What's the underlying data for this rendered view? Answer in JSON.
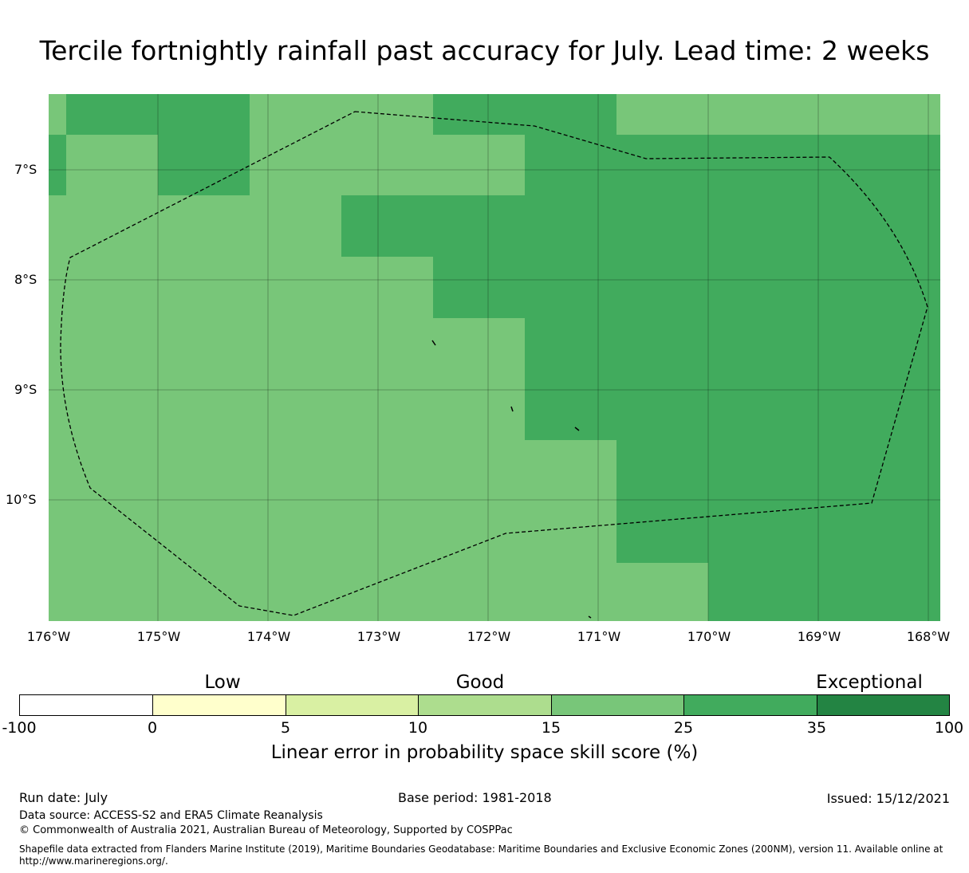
{
  "title": "Tercile fortnightly rainfall past accuracy for July. Lead time: 2 weeks",
  "map": {
    "lat_labels": [
      "7°S",
      "8°S",
      "9°S",
      "10°S"
    ],
    "lon_labels": [
      "176°W",
      "175°W",
      "174°W",
      "173°W",
      "172°W",
      "171°W",
      "170°W",
      "169°W",
      "168°W"
    ],
    "lat_range": [
      -11.2,
      -6.3
    ],
    "lon_range": [
      -176.0,
      -167.9
    ],
    "fill_colors": {
      "15-25": "#78c679",
      "25-35": "#41ab5d"
    }
  },
  "colorbar": {
    "category_words": [
      "Low",
      "Good",
      "Exceptional"
    ],
    "ticks": [
      "-100",
      "0",
      "5",
      "10",
      "15",
      "25",
      "35",
      "100"
    ],
    "colors": [
      "#ffffff",
      "#ffffcc",
      "#d9f0a3",
      "#addd8e",
      "#78c679",
      "#41ab5d",
      "#238443"
    ],
    "label": "Linear error in probability space skill score (%)"
  },
  "footer": {
    "run_date": "Run date: July",
    "base_period": "Base period: 1981-2018",
    "issued": "Issued: 15/12/2021",
    "data_source": "Data source: ACCESS-S2 and ERA5 Climate Reanalysis",
    "copyright": "© Commonwealth of Australia 2021, Australian Bureau of Meteorology, Supported by COSPPac",
    "shapefile": "Shapefile data extracted from Flanders Marine Institute (2019), Maritime Boundaries Geodatabase: Maritime Boundaries and Exclusive Economic Zones (200NM), version 11. Available online at http://www.marineregions.org/."
  }
}
